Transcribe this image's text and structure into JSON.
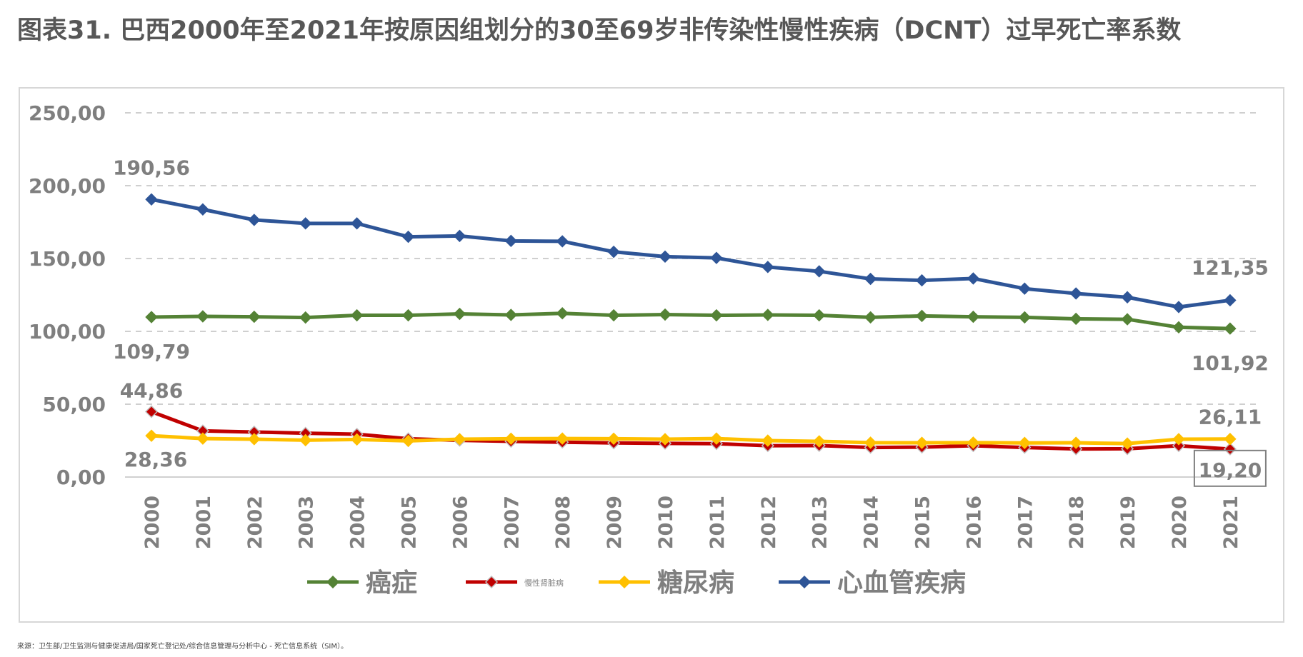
{
  "title": "图表31. 巴西2000年至2021年按原因组划分的30至69岁非传染性慢性疾病（DCNT）过早死亡率系数",
  "source": "来源：卫生部/卫生监测与健康促进局/国家死亡登记处/综合信息管理与分析中心 - 死亡信息系统（SIM）。",
  "chart_data": {
    "type": "line",
    "x": [
      "2000",
      "2001",
      "2002",
      "2003",
      "2004",
      "2005",
      "2006",
      "2007",
      "2008",
      "2009",
      "2010",
      "2011",
      "2012",
      "2013",
      "2014",
      "2015",
      "2016",
      "2017",
      "2018",
      "2019",
      "2020",
      "2021"
    ],
    "ylim": [
      0,
      250
    ],
    "yticks": [
      "0,00",
      "50,00",
      "100,00",
      "150,00",
      "200,00",
      "250,00"
    ],
    "grid": true,
    "legend_position": "bottom",
    "series": [
      {
        "name": "癌症",
        "color": "#548235",
        "values": [
          109.79,
          110.3,
          110.0,
          109.5,
          111.0,
          111.0,
          112.0,
          111.3,
          112.4,
          111.0,
          111.5,
          111.0,
          111.3,
          111.0,
          109.6,
          110.6,
          110.0,
          109.6,
          108.6,
          108.3,
          102.8,
          101.92
        ]
      },
      {
        "name": "慢性肾脏病",
        "color": "#c00000",
        "values": [
          44.86,
          31.7,
          30.9,
          30.1,
          29.4,
          26.3,
          25.2,
          24.5,
          23.9,
          23.4,
          23.1,
          22.9,
          21.5,
          21.6,
          20.3,
          20.5,
          21.5,
          20.3,
          19.3,
          19.4,
          21.5,
          19.2
        ]
      },
      {
        "name": "糖尿病",
        "color": "#ffc000",
        "values": [
          28.36,
          26.4,
          26.0,
          25.3,
          25.8,
          24.8,
          26.0,
          26.3,
          26.4,
          26.3,
          26.0,
          26.4,
          25.0,
          24.5,
          23.6,
          23.5,
          23.6,
          23.4,
          23.5,
          23.0,
          26.0,
          26.11
        ]
      },
      {
        "name": "心血管疾病",
        "color": "#2e5597",
        "values": [
          190.56,
          183.7,
          176.5,
          174.1,
          174.1,
          164.9,
          165.5,
          162.1,
          161.8,
          154.6,
          151.3,
          150.4,
          144.2,
          141.2,
          136.0,
          135.0,
          136.3,
          129.3,
          126.0,
          123.4,
          116.7,
          121.35
        ]
      }
    ],
    "data_labels": {
      "cvd_first": "190,56",
      "cvd_last": "121,35",
      "cancer_first": "109,79",
      "cancer_last": "101,92",
      "ckd_first": "44,86",
      "ckd_last": "19,20",
      "diabetes_first": "28,36",
      "diabetes_last": "26,11"
    }
  }
}
